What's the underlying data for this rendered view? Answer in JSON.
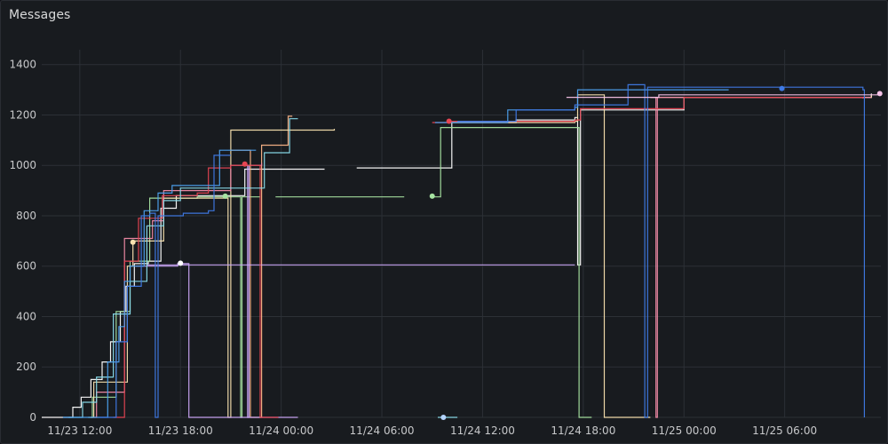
{
  "panel": {
    "title": "Messages"
  },
  "chart_data": {
    "type": "line",
    "title": "Messages",
    "xlabel": "",
    "ylabel": "",
    "x_unit": "time",
    "xlim": [
      "11/23 09:44",
      "11/25 11:44"
    ],
    "ylim": [
      0,
      1480
    ],
    "x_ticks": [
      "11/23 12:00",
      "11/23 18:00",
      "11/24 00:00",
      "11/24 06:00",
      "11/24 12:00",
      "11/24 18:00",
      "11/25 00:00",
      "11/25 06:00"
    ],
    "y_ticks": [
      0,
      200,
      400,
      600,
      800,
      1000,
      1200,
      1400
    ],
    "grid": true,
    "legend": "none",
    "series": [
      {
        "color": "#ffffff",
        "points": [
          [
            "11/23 09:44",
            0
          ],
          [
            "11/23 11:00",
            0
          ],
          [
            "11/23 11:35",
            40
          ],
          [
            "11/23 12:05",
            80
          ],
          [
            "11/23 12:40",
            150
          ],
          [
            "11/23 13:20",
            220
          ],
          [
            "11/23 13:50",
            300
          ],
          [
            "11/23 14:25",
            420
          ],
          [
            "11/23 14:45",
            520
          ],
          [
            "11/23 15:15",
            610
          ],
          [
            "11/23 16:05",
            620
          ],
          [
            "11/23 16:50",
            830
          ],
          [
            "11/23 17:45",
            880
          ],
          [
            "11/23 19:00",
            880
          ],
          [
            "11/23 21:50",
            985
          ],
          [
            "11/24 01:00",
            985
          ],
          [
            "11/24 02:35",
            985
          ]
        ]
      },
      {
        "color": "#ffffff",
        "points": [
          [
            "11/24 04:30",
            990
          ],
          [
            "11/24 09:50",
            990
          ],
          [
            "11/24 10:10",
            1170
          ],
          [
            "11/24 14:00",
            1180
          ],
          [
            "11/24 17:30",
            1190
          ],
          [
            "11/24 17:40",
            605
          ],
          [
            "11/24 17:50",
            1220
          ],
          [
            "11/25 00:00",
            1270
          ],
          [
            "11/25 11:10",
            1285
          ]
        ]
      },
      {
        "color": "#a6e3a1",
        "points": [
          [
            "11/23 12:30",
            0
          ],
          [
            "11/23 12:45",
            80
          ],
          [
            "11/23 14:00",
            80
          ],
          [
            "11/23 14:10",
            420
          ],
          [
            "11/23 15:00",
            620
          ],
          [
            "11/23 16:10",
            870
          ],
          [
            "11/23 19:00",
            875
          ],
          [
            "11/23 21:30",
            875
          ],
          [
            "11/23 21:35",
            0
          ],
          [
            "11/23 21:40",
            875
          ],
          [
            "11/23 22:45",
            875
          ]
        ]
      },
      {
        "color": "#a6e3a1",
        "points": [
          [
            "11/23 23:40",
            875
          ],
          [
            "11/24 07:20",
            875
          ]
        ]
      },
      {
        "color": "#a6e3a1",
        "points": [
          [
            "11/24 09:00",
            875
          ],
          [
            "11/24 09:30",
            1150
          ],
          [
            "11/24 17:40",
            1150
          ],
          [
            "11/24 17:45",
            0
          ],
          [
            "11/24 18:30",
            0
          ]
        ]
      },
      {
        "color": "#fab387",
        "points": [
          [
            "11/23 21:00",
            1060
          ],
          [
            "11/23 22:00",
            1060
          ],
          [
            "11/23 22:10",
            0
          ],
          [
            "11/23 22:45",
            0
          ],
          [
            "11/23 22:50",
            1080
          ],
          [
            "11/24 00:20",
            1080
          ],
          [
            "11/24 00:25",
            1195
          ],
          [
            "11/24 00:40",
            1195
          ]
        ]
      },
      {
        "color": "#f9e2af",
        "points": [
          [
            "11/23 12:40",
            0
          ],
          [
            "11/23 12:50",
            140
          ],
          [
            "11/23 13:40",
            140
          ],
          [
            "11/23 14:50",
            600
          ],
          [
            "11/23 15:10",
            700
          ],
          [
            "11/23 16:00",
            700
          ],
          [
            "11/23 17:00",
            870
          ],
          [
            "11/23 20:45",
            870
          ],
          [
            "11/23 20:50",
            0
          ],
          [
            "11/23 21:00",
            1140
          ],
          [
            "11/23 22:50",
            1140
          ],
          [
            "11/23 23:00",
            1140
          ],
          [
            "11/24 01:00",
            1140
          ],
          [
            "11/24 03:10",
            1145
          ]
        ]
      },
      {
        "color": "#f9e2af",
        "points": [
          [
            "11/24 10:00",
            1170
          ],
          [
            "11/24 17:30",
            1175
          ],
          [
            "11/24 17:40",
            1280
          ],
          [
            "11/24 19:10",
            1280
          ],
          [
            "11/24 19:15",
            0
          ],
          [
            "11/24 22:00",
            0
          ]
        ]
      },
      {
        "color": "#f9e2af",
        "points": [
          [
            "11/24 22:00",
            1270
          ],
          [
            "11/25 11:10",
            1280
          ]
        ]
      },
      {
        "color": "#cba6f7",
        "points": [
          [
            "11/23 15:20",
            600
          ],
          [
            "11/23 17:50",
            610
          ],
          [
            "11/23 18:30",
            0
          ],
          [
            "11/23 19:00",
            0
          ],
          [
            "11/24 01:00",
            0
          ]
        ]
      },
      {
        "color": "#cba6f7",
        "points": [
          [
            "11/23 16:00",
            605
          ],
          [
            "11/24 17:30",
            605
          ]
        ]
      },
      {
        "color": "#cba6f7",
        "points": [
          [
            "11/23 21:50",
            1000
          ],
          [
            "11/23 22:00",
            0
          ],
          [
            "11/23 22:05",
            1000
          ]
        ]
      },
      {
        "color": "#f38ba8",
        "points": [
          [
            "11/23 12:50",
            0
          ],
          [
            "11/23 13:00",
            100
          ],
          [
            "11/23 14:30",
            100
          ],
          [
            "11/23 14:40",
            710
          ],
          [
            "11/23 16:20",
            780
          ],
          [
            "11/23 17:00",
            900
          ],
          [
            "11/23 18:20",
            900
          ],
          [
            "11/23 21:00",
            1000
          ],
          [
            "11/23 22:50",
            1010
          ]
        ]
      },
      {
        "color": "#f38ba8",
        "points": [
          [
            "11/24 22:00",
            1270
          ],
          [
            "11/24 22:15",
            1270
          ],
          [
            "11/24 22:20",
            0
          ],
          [
            "11/24 22:25",
            1270
          ],
          [
            "11/25 11:10",
            1270
          ]
        ]
      },
      {
        "color": "#e64553",
        "points": [
          [
            "11/23 14:00",
            0
          ],
          [
            "11/23 14:40",
            620
          ],
          [
            "11/23 15:30",
            790
          ],
          [
            "11/23 16:55",
            880
          ],
          [
            "11/23 19:00",
            890
          ],
          [
            "11/23 19:40",
            990
          ],
          [
            "11/23 21:00",
            1000
          ],
          [
            "11/23 22:40",
            1000
          ],
          [
            "11/23 22:45",
            0
          ],
          [
            "11/23 23:50",
            0
          ]
        ]
      },
      {
        "color": "#e64553",
        "points": [
          [
            "11/24 09:00",
            1170
          ],
          [
            "11/24 10:00",
            1175
          ],
          [
            "11/24 17:30",
            1180
          ],
          [
            "11/24 17:50",
            1225
          ],
          [
            "11/25 00:00",
            1270
          ],
          [
            "11/25 10:40",
            1265
          ]
        ]
      },
      {
        "color": "#89dceb",
        "points": [
          [
            "11/23 11:20",
            0
          ],
          [
            "11/23 12:10",
            60
          ],
          [
            "11/23 13:00",
            160
          ],
          [
            "11/23 14:00",
            410
          ],
          [
            "11/23 15:00",
            540
          ],
          [
            "11/23 16:00",
            760
          ],
          [
            "11/23 17:00",
            860
          ],
          [
            "11/23 18:00",
            910
          ],
          [
            "11/23 21:00",
            910
          ],
          [
            "11/23 22:00",
            910
          ],
          [
            "11/23 23:00",
            1050
          ],
          [
            "11/24 00:30",
            1185
          ],
          [
            "11/24 01:00",
            1185
          ]
        ]
      },
      {
        "color": "#89dceb",
        "points": [
          [
            "11/24 09:20",
            0
          ],
          [
            "11/24 10:30",
            0
          ]
        ]
      },
      {
        "color": "#4da2f1",
        "points": [
          [
            "11/23 11:00",
            0
          ],
          [
            "11/23 12:30",
            0
          ],
          [
            "11/23 12:50",
            0
          ],
          [
            "11/23 13:40",
            220
          ],
          [
            "11/23 14:20",
            360
          ],
          [
            "11/23 14:40",
            540
          ],
          [
            "11/23 15:00",
            600
          ],
          [
            "11/23 15:50",
            820
          ],
          [
            "11/23 16:40",
            890
          ],
          [
            "11/23 17:30",
            920
          ],
          [
            "11/23 20:00",
            920
          ],
          [
            "11/23 20:20",
            1060
          ],
          [
            "11/23 20:50",
            1060
          ],
          [
            "11/23 22:30",
            1060
          ]
        ]
      },
      {
        "color": "#4da2f1",
        "points": [
          [
            "11/24 09:10",
            1170
          ],
          [
            "11/24 13:30",
            1220
          ],
          [
            "11/24 17:30",
            1230
          ],
          [
            "11/24 17:40",
            1300
          ],
          [
            "11/25 02:40",
            1300
          ]
        ]
      },
      {
        "color": "#3f7ae6",
        "points": [
          [
            "11/24 10:30",
            1175
          ],
          [
            "11/24 14:00",
            1220
          ],
          [
            "11/24 17:30",
            1240
          ],
          [
            "11/24 20:40",
            1320
          ],
          [
            "11/24 21:30",
            1320
          ],
          [
            "11/24 21:40",
            0
          ],
          [
            "11/24 21:50",
            1310
          ],
          [
            "11/25 10:40",
            1300
          ],
          [
            "11/25 10:45",
            0
          ]
        ]
      },
      {
        "color": "#3f7ae6",
        "points": [
          [
            "11/23 13:10",
            0
          ],
          [
            "11/23 13:40",
            0
          ],
          [
            "11/23 14:10",
            300
          ],
          [
            "11/23 14:50",
            520
          ],
          [
            "11/23 15:40",
            800
          ],
          [
            "11/23 16:10",
            810
          ],
          [
            "11/23 16:30",
            0
          ],
          [
            "11/23 16:40",
            800
          ],
          [
            "11/23 18:10",
            810
          ],
          [
            "11/23 19:40",
            820
          ],
          [
            "11/23 20:00",
            1040
          ],
          [
            "11/23 21:00",
            1040
          ]
        ]
      },
      {
        "color": "#f5c2e7",
        "points": [
          [
            "11/24 17:00",
            1270
          ],
          [
            "11/24 22:30",
            1280
          ],
          [
            "11/25 11:40",
            1285
          ]
        ]
      }
    ],
    "markers": [
      {
        "x": "11/23 15:10",
        "y": 695,
        "color": "#f9e2af"
      },
      {
        "x": "11/23 18:00",
        "y": 612,
        "color": "#ffffff"
      },
      {
        "x": "11/23 20:40",
        "y": 878,
        "color": "#a6e3a1"
      },
      {
        "x": "11/23 21:50",
        "y": 1005,
        "color": "#e64553"
      },
      {
        "x": "11/24 09:00",
        "y": 878,
        "color": "#a6e3a1"
      },
      {
        "x": "11/24 10:00",
        "y": 1175,
        "color": "#e64553"
      },
      {
        "x": "11/24 09:40",
        "y": 0,
        "color": "#b4d4ff"
      },
      {
        "x": "11/25 05:50",
        "y": 1305,
        "color": "#3f7ae6"
      },
      {
        "x": "11/25 11:40",
        "y": 1285,
        "color": "#f5c2e7"
      }
    ]
  }
}
